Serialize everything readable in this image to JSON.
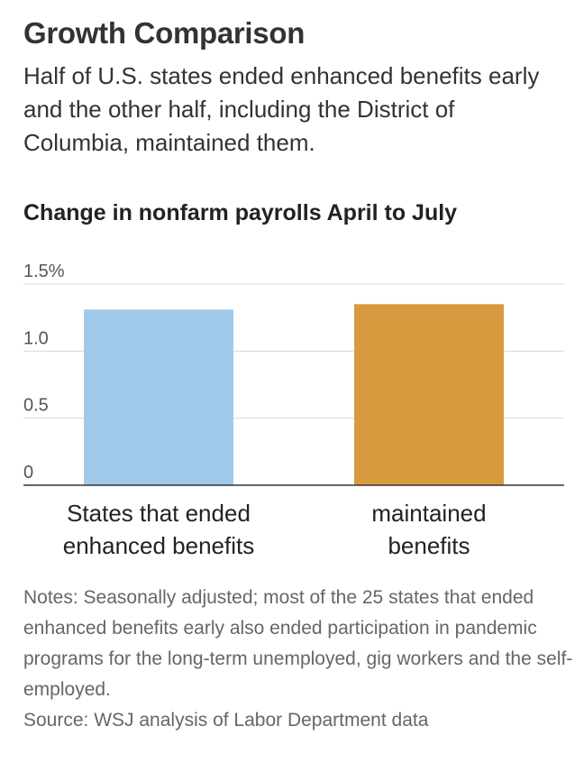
{
  "header": {
    "title": "Growth Comparison",
    "subtitle": "Half of U.S. states ended enhanced benefits early and the other half, including the District of Columbia, maintained them."
  },
  "chart_data": {
    "type": "bar",
    "title": "Change in nonfarm payrolls April to July",
    "categories": [
      [
        "States that ended",
        "enhanced benefits"
      ],
      [
        "maintained",
        "benefits"
      ]
    ],
    "values": [
      1.31,
      1.35
    ],
    "colors": [
      "#a1c9ea",
      "#d79a3e"
    ],
    "ylim": [
      0,
      1.5
    ],
    "yticks": [
      {
        "value": 1.5,
        "label": "1.5%"
      },
      {
        "value": 1.0,
        "label": "1.0"
      },
      {
        "value": 0.5,
        "label": "0.5"
      },
      {
        "value": 0,
        "label": "0"
      }
    ],
    "grid": true
  },
  "footer": {
    "notes": "Notes: Seasonally adjusted; most of the 25 states that ended enhanced benefits early also ended participation in pandemic programs for the long-term unemployed, gig workers and the self-employed.",
    "source": "Source: WSJ analysis of Labor Department data"
  }
}
